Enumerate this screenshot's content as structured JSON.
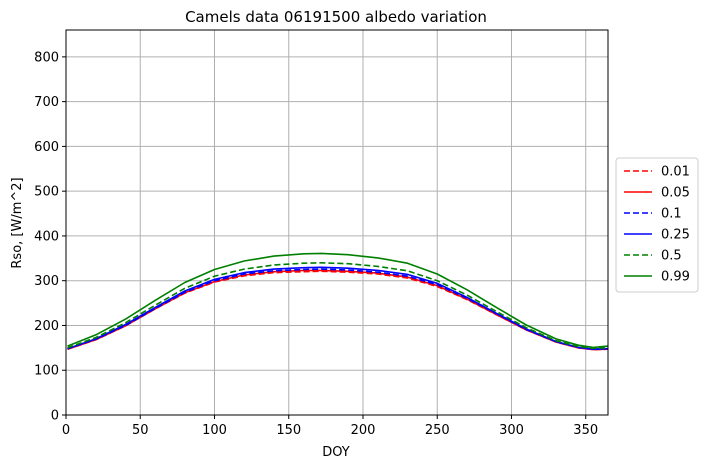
{
  "chart_data": {
    "type": "line",
    "title": "Camels data 06191500 albedo variation",
    "xlabel": "DOY",
    "ylabel": "Rso, [W/m^2]",
    "xlim": [
      0,
      365
    ],
    "ylim": [
      0,
      860
    ],
    "xticks": [
      0,
      50,
      100,
      150,
      200,
      250,
      300,
      350
    ],
    "yticks": [
      0,
      100,
      200,
      300,
      400,
      500,
      600,
      700,
      800
    ],
    "grid": true,
    "legend_position": "center-right-outside",
    "x": [
      1,
      20,
      40,
      60,
      80,
      100,
      120,
      140,
      160,
      172,
      190,
      210,
      230,
      250,
      270,
      290,
      310,
      330,
      345,
      355,
      365
    ],
    "series": [
      {
        "name": "0.01",
        "color": "#ff0000",
        "dash": "dashed",
        "values": [
          147,
          168,
          199,
          237,
          272,
          297,
          311,
          318,
          320,
          321,
          319,
          315,
          306,
          287,
          258,
          224,
          190,
          163,
          150,
          146,
          147
        ]
      },
      {
        "name": "0.05",
        "color": "#ff0000",
        "dash": "solid",
        "values": [
          147,
          168,
          199,
          237,
          273,
          298,
          313,
          320,
          323,
          323,
          321,
          317,
          308,
          289,
          259,
          224,
          190,
          163,
          150,
          146,
          147
        ]
      },
      {
        "name": "0.1",
        "color": "#0000ff",
        "dash": "dashed",
        "values": [
          148,
          169,
          200,
          238,
          274,
          300,
          315,
          322,
          325,
          326,
          324,
          319,
          310,
          291,
          261,
          226,
          191,
          164,
          151,
          147,
          148
        ]
      },
      {
        "name": "0.25",
        "color": "#0000ff",
        "dash": "solid",
        "values": [
          148,
          170,
          202,
          240,
          277,
          303,
          318,
          326,
          329,
          330,
          328,
          323,
          314,
          294,
          263,
          227,
          192,
          164,
          151,
          147,
          148
        ]
      },
      {
        "name": "0.5",
        "color": "#008000",
        "dash": "dashed",
        "values": [
          150,
          173,
          206,
          245,
          283,
          310,
          326,
          335,
          339,
          340,
          338,
          332,
          322,
          300,
          268,
          231,
          195,
          166,
          153,
          149,
          150
        ]
      },
      {
        "name": "0.99",
        "color": "#008000",
        "dash": "solid",
        "values": [
          154,
          179,
          214,
          256,
          296,
          325,
          344,
          355,
          360,
          361,
          358,
          351,
          339,
          315,
          280,
          240,
          201,
          170,
          156,
          151,
          154
        ]
      }
    ]
  }
}
